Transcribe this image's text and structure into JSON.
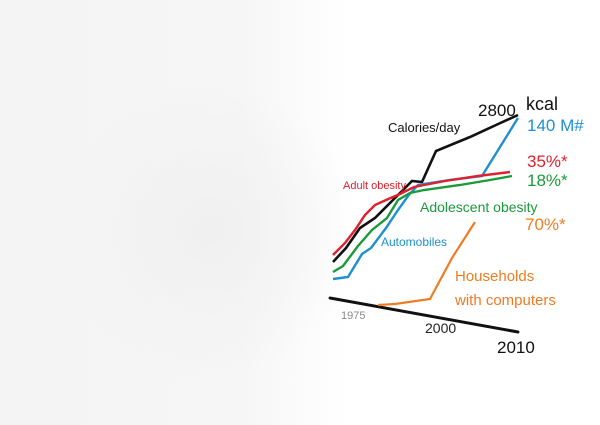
{
  "chart_data": {
    "type": "line",
    "x_ticks": [
      "1975",
      "2000",
      "2010"
    ],
    "colors": {
      "calories": "#111111",
      "automobiles": "#1e90d0",
      "adult_obesity": "#e0202e",
      "adolescent_obesity": "#1a9a3a",
      "computers": "#ee7c22",
      "axis": "#111111"
    },
    "annotations": {
      "calories_label": "Calories/day",
      "calories_end_value": "2800",
      "calories_unit": "kcal",
      "automobiles_label": "Automobiles",
      "automobiles_end": "140 M#",
      "adult_obesity_label": "Adult obesity",
      "adult_obesity_end": "35%*",
      "adolescent_obesity_label": "Adolescent obesity",
      "adolescent_obesity_end": "18%*",
      "computers_label_line1": "Households",
      "computers_label_line2": "with computers",
      "computers_end": "70%*"
    }
  }
}
